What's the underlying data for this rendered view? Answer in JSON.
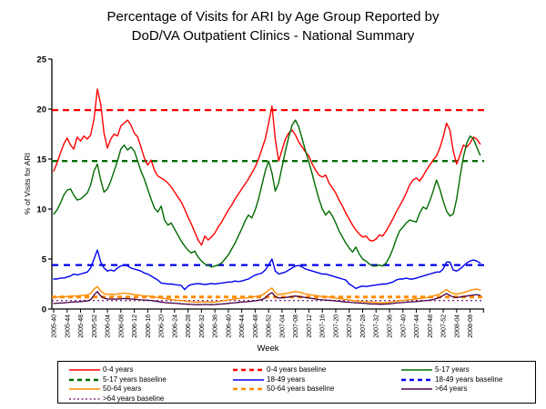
{
  "title": {
    "line1": "Percentage of Visits for ARI by Age Group Reported by",
    "line2": "DoD/VA Outpatient Clinics - National Summary"
  },
  "chart_data": {
    "type": "line",
    "title": "Percentage of Visits for ARI by Age Group Reported by DoD/VA Outpatient Clinics - National Summary",
    "xlabel": "Week",
    "ylabel": "% of Visits for ARI",
    "ylim": [
      0,
      25
    ],
    "y_ticks": [
      0,
      5,
      10,
      15,
      20,
      25
    ],
    "grid": false,
    "legend_position": "bottom-box",
    "x_tick_interval_weeks": 4,
    "x_tick_labels": [
      "2005-40",
      "2005-44",
      "2005-48",
      "2005-52",
      "2006-04",
      "2006-08",
      "2006-12",
      "2006-16",
      "2006-20",
      "2006-24",
      "2006-28",
      "2006-32",
      "2006-36",
      "2006-40",
      "2006-44",
      "2006-48",
      "2006-52",
      "2007-04",
      "2007-08",
      "2007-12",
      "2007-16",
      "2007-20",
      "2007-24",
      "2007-28",
      "2007-32",
      "2007-36",
      "2007-40",
      "2007-44",
      "2007-48",
      "2007-52",
      "2008-04",
      "2008-08"
    ],
    "series": [
      {
        "name": "0-4 years",
        "color": "#FF0000",
        "width": 1.4,
        "dash": "",
        "values": [
          13.8,
          14.6,
          15.6,
          16.5,
          17.1,
          16.4,
          16.0,
          17.2,
          16.8,
          17.3,
          17.0,
          17.4,
          19.0,
          22.0,
          20.5,
          17.6,
          16.1,
          17.0,
          17.5,
          17.3,
          18.3,
          18.6,
          18.9,
          18.4,
          17.6,
          17.2,
          16.2,
          15.1,
          14.4,
          14.9,
          13.9,
          13.3,
          13.1,
          12.9,
          12.6,
          12.2,
          11.7,
          11.2,
          10.7,
          10.0,
          9.2,
          8.5,
          7.7,
          6.9,
          6.4,
          7.3,
          6.9,
          7.2,
          7.6,
          8.2,
          8.7,
          9.3,
          9.9,
          10.4,
          11.0,
          11.5,
          12.0,
          12.5,
          13.0,
          13.6,
          14.2,
          15.0,
          16.0,
          17.0,
          18.6,
          20.3,
          17.0,
          14.8,
          15.9,
          17.0,
          17.6,
          17.9,
          17.4,
          16.7,
          16.2,
          15.7,
          15.3,
          14.5,
          13.9,
          13.4,
          13.2,
          13.4,
          12.6,
          12.1,
          11.6,
          10.9,
          10.3,
          9.6,
          9.0,
          8.4,
          7.9,
          7.5,
          7.2,
          7.3,
          6.9,
          6.8,
          7.0,
          7.4,
          7.3,
          7.8,
          8.4,
          9.0,
          9.7,
          10.3,
          10.9,
          11.6,
          12.4,
          12.9,
          13.1,
          12.8,
          13.3,
          13.9,
          14.4,
          14.9,
          15.3,
          16.1,
          17.2,
          18.6,
          17.9,
          15.8,
          14.5,
          15.4,
          16.4,
          16.2,
          16.6,
          17.2,
          17.0,
          16.5
        ]
      },
      {
        "name": "5-17 years",
        "color": "#006B00",
        "width": 1.4,
        "dash": "",
        "values": [
          9.5,
          9.9,
          10.6,
          11.4,
          11.9,
          12.0,
          11.4,
          10.9,
          11.0,
          11.3,
          11.6,
          12.4,
          13.8,
          14.5,
          12.9,
          11.7,
          12.0,
          12.8,
          13.8,
          14.8,
          16.0,
          16.4,
          15.9,
          16.2,
          15.8,
          14.8,
          13.8,
          13.0,
          12.0,
          11.0,
          10.1,
          9.7,
          10.3,
          8.9,
          8.4,
          8.6,
          8.0,
          7.4,
          6.8,
          6.3,
          5.9,
          5.6,
          5.8,
          5.2,
          4.8,
          4.5,
          4.4,
          4.2,
          4.3,
          4.4,
          4.6,
          5.0,
          5.4,
          6.0,
          6.6,
          7.3,
          8.0,
          8.8,
          9.4,
          9.1,
          9.9,
          11.0,
          12.4,
          13.8,
          14.8,
          13.6,
          11.8,
          12.6,
          14.2,
          15.8,
          17.2,
          18.4,
          18.9,
          18.2,
          17.0,
          15.8,
          14.7,
          13.5,
          12.2,
          11.0,
          10.0,
          9.4,
          9.8,
          9.3,
          8.6,
          7.8,
          7.2,
          6.6,
          6.1,
          5.7,
          6.2,
          5.5,
          5.0,
          4.8,
          4.5,
          4.3,
          4.3,
          4.4,
          4.3,
          4.6,
          5.2,
          6.0,
          7.0,
          7.8,
          8.2,
          8.6,
          8.9,
          8.8,
          8.7,
          9.6,
          10.2,
          10.0,
          10.8,
          11.8,
          12.9,
          12.0,
          10.8,
          9.8,
          9.3,
          9.5,
          11.0,
          13.2,
          15.2,
          16.6,
          17.3,
          17.0,
          16.2,
          15.4
        ]
      },
      {
        "name": "18-49 years",
        "color": "#0000EE",
        "width": 1.4,
        "dash": "",
        "values": [
          3.0,
          3.0,
          3.1,
          3.1,
          3.2,
          3.3,
          3.5,
          3.4,
          3.5,
          3.6,
          3.7,
          4.1,
          5.0,
          5.9,
          4.7,
          4.1,
          3.8,
          3.9,
          3.8,
          4.1,
          4.3,
          4.4,
          4.3,
          4.1,
          4.0,
          3.9,
          3.8,
          3.6,
          3.5,
          3.3,
          3.1,
          2.9,
          2.6,
          2.55,
          2.5,
          2.5,
          2.45,
          2.4,
          2.35,
          1.95,
          2.3,
          2.45,
          2.5,
          2.55,
          2.5,
          2.45,
          2.5,
          2.55,
          2.5,
          2.55,
          2.6,
          2.65,
          2.7,
          2.7,
          2.8,
          2.75,
          2.8,
          2.9,
          3.0,
          3.2,
          3.4,
          3.5,
          3.6,
          3.9,
          4.4,
          5.0,
          3.8,
          3.5,
          3.6,
          3.7,
          3.9,
          4.1,
          4.3,
          4.35,
          4.2,
          4.0,
          3.9,
          3.8,
          3.7,
          3.6,
          3.5,
          3.5,
          3.4,
          3.3,
          3.2,
          3.1,
          3.0,
          2.9,
          2.5,
          2.3,
          2.05,
          2.2,
          2.3,
          2.25,
          2.3,
          2.35,
          2.4,
          2.45,
          2.5,
          2.5,
          2.6,
          2.7,
          2.9,
          3.0,
          3.0,
          3.1,
          3.0,
          3.0,
          3.1,
          3.2,
          3.3,
          3.4,
          3.5,
          3.6,
          3.7,
          3.7,
          4.0,
          4.7,
          4.7,
          3.9,
          3.8,
          4.0,
          4.3,
          4.6,
          4.8,
          4.9,
          4.8,
          4.6
        ]
      },
      {
        "name": "50-64 years",
        "color": "#FF8C00",
        "width": 1.4,
        "dash": "",
        "values": [
          1.15,
          1.2,
          1.2,
          1.25,
          1.25,
          1.3,
          1.3,
          1.3,
          1.35,
          1.35,
          1.4,
          1.55,
          2.0,
          2.25,
          1.8,
          1.55,
          1.45,
          1.5,
          1.45,
          1.5,
          1.55,
          1.6,
          1.55,
          1.5,
          1.45,
          1.4,
          1.35,
          1.3,
          1.3,
          1.25,
          1.2,
          1.15,
          1.1,
          1.05,
          1.0,
          0.95,
          0.9,
          0.85,
          0.85,
          0.8,
          0.75,
          0.72,
          0.7,
          0.68,
          0.7,
          0.72,
          0.7,
          0.68,
          0.7,
          0.75,
          0.8,
          0.85,
          0.9,
          0.95,
          1.0,
          1.05,
          1.1,
          1.1,
          1.15,
          1.2,
          1.25,
          1.3,
          1.4,
          1.6,
          1.9,
          2.1,
          1.6,
          1.45,
          1.5,
          1.55,
          1.6,
          1.7,
          1.75,
          1.7,
          1.6,
          1.5,
          1.45,
          1.4,
          1.35,
          1.3,
          1.25,
          1.25,
          1.2,
          1.15,
          1.1,
          1.05,
          1.0,
          0.95,
          0.9,
          0.85,
          0.8,
          0.78,
          0.75,
          0.72,
          0.7,
          0.68,
          0.65,
          0.65,
          0.63,
          0.65,
          0.68,
          0.72,
          0.78,
          0.82,
          0.85,
          0.9,
          0.95,
          0.95,
          1.0,
          1.05,
          1.1,
          1.15,
          1.2,
          1.3,
          1.4,
          1.5,
          1.75,
          1.95,
          1.7,
          1.55,
          1.5,
          1.55,
          1.65,
          1.75,
          1.85,
          1.95,
          2.0,
          1.9
        ]
      },
      {
        "name": ">64 years",
        "color": "#460046",
        "width": 1.3,
        "dash": "",
        "values": [
          0.55,
          0.58,
          0.6,
          0.62,
          0.65,
          0.68,
          0.7,
          0.72,
          0.75,
          0.78,
          0.8,
          0.95,
          1.4,
          1.75,
          1.3,
          1.1,
          1.0,
          1.0,
          0.98,
          1.0,
          1.02,
          1.05,
          1.02,
          1.0,
          0.98,
          0.95,
          0.92,
          0.9,
          0.88,
          0.85,
          0.8,
          0.75,
          0.7,
          0.65,
          0.62,
          0.6,
          0.58,
          0.55,
          0.52,
          0.5,
          0.48,
          0.46,
          0.45,
          0.44,
          0.45,
          0.46,
          0.45,
          0.44,
          0.45,
          0.48,
          0.5,
          0.53,
          0.56,
          0.6,
          0.63,
          0.66,
          0.7,
          0.72,
          0.75,
          0.78,
          0.82,
          0.88,
          0.95,
          1.1,
          1.45,
          1.65,
          1.25,
          1.1,
          1.12,
          1.15,
          1.2,
          1.25,
          1.3,
          1.25,
          1.2,
          1.15,
          1.1,
          1.05,
          1.0,
          0.95,
          0.92,
          0.9,
          0.88,
          0.85,
          0.8,
          0.78,
          0.75,
          0.7,
          0.68,
          0.65,
          0.62,
          0.6,
          0.58,
          0.55,
          0.52,
          0.5,
          0.5,
          0.48,
          0.48,
          0.5,
          0.52,
          0.55,
          0.6,
          0.63,
          0.65,
          0.68,
          0.72,
          0.72,
          0.75,
          0.78,
          0.82,
          0.85,
          0.88,
          0.95,
          1.05,
          1.15,
          1.35,
          1.55,
          1.35,
          1.2,
          1.15,
          1.2,
          1.25,
          1.3,
          1.35,
          1.4,
          1.45,
          1.35
        ]
      }
    ],
    "baselines": [
      {
        "name": "0-4 years baseline",
        "color": "#FF0000",
        "value": 19.9,
        "dash": "7 5",
        "width": 2.3
      },
      {
        "name": "5-17 years baseline",
        "color": "#006B00",
        "value": 14.8,
        "dash": "6 5",
        "width": 2.3
      },
      {
        "name": "18-49 years baseline",
        "color": "#0000EE",
        "value": 4.4,
        "dash": "7 6",
        "width": 2.3
      },
      {
        "name": "50-64 years baseline",
        "color": "#FF8C00",
        "value": 1.2,
        "dash": "5 4",
        "width": 3
      },
      {
        "name": ">64 years baseline",
        "color": "#803080",
        "value": 0.85,
        "dash": "2 3",
        "width": 1.4
      }
    ],
    "legend": [
      {
        "label": "0-4 years",
        "color": "#FF0000",
        "dash": "",
        "width": 1.5
      },
      {
        "label": "0-4 years baseline",
        "color": "#FF0000",
        "dash": "5 4",
        "width": 2.6
      },
      {
        "label": "5-17 years",
        "color": "#006B00",
        "dash": "",
        "width": 1.5
      },
      {
        "label": "5-17 years baseline",
        "color": "#006B00",
        "dash": "5 4",
        "width": 2.6
      },
      {
        "label": "18-49 years",
        "color": "#0000EE",
        "dash": "",
        "width": 1.5
      },
      {
        "label": "18-49 years baseline",
        "color": "#0000EE",
        "dash": "5 4",
        "width": 2.6
      },
      {
        "label": "50-64 years",
        "color": "#FF8C00",
        "dash": "",
        "width": 1.5
      },
      {
        "label": "50-64 years baseline",
        "color": "#FF8C00",
        "dash": "5 4",
        "width": 2.6
      },
      {
        "label": ">64 years",
        "color": "#460046",
        "dash": "",
        "width": 1.5
      },
      {
        "label": ">64 years baseline",
        "color": "#803080",
        "dash": "2 2.5",
        "width": 1.5
      }
    ]
  }
}
